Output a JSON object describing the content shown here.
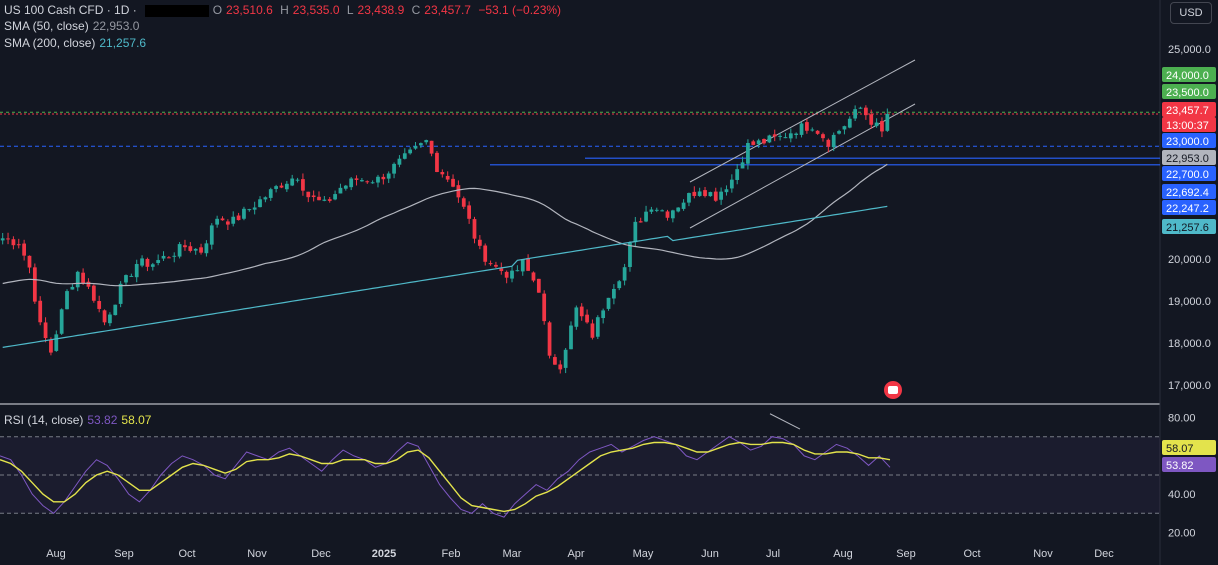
{
  "header": {
    "symbol": "US 100 Cash CFD · 1D ·",
    "open_label": "O",
    "open": "23,510.6",
    "high_label": "H",
    "high": "23,535.0",
    "low_label": "L",
    "low": "23,438.9",
    "close_label": "C",
    "close": "23,457.7",
    "change": "−53.1 (−0.23%)",
    "currency": "USD"
  },
  "indicators": {
    "sma50_label": "SMA (50, close)",
    "sma50_value": "22,953.0",
    "sma200_label": "SMA (200, close)",
    "sma200_value": "21,257.6",
    "rsi_label": "RSI (14, close)",
    "rsi_value": "53.82",
    "rsi_ma_value": "58.07"
  },
  "colors": {
    "bg": "#131722",
    "up": "#26a69a",
    "down": "#f23645",
    "sma50": "#b2b5be",
    "sma200": "#4fb9c9",
    "rsi": "#7e57c2",
    "rsi_ma": "#e3e34c",
    "hline": "#2962ff",
    "green_badge": "#4caf50"
  },
  "chart_data": [
    {
      "type": "candlestick",
      "title": "US 100 Cash CFD · 1D",
      "ylim": [
        16600,
        25600
      ],
      "x_labels": [
        "Aug",
        "Sep",
        "Oct",
        "Nov",
        "Dec",
        "2025",
        "Feb",
        "Mar",
        "Apr",
        "May",
        "Jun",
        "Jul",
        "Aug",
        "Sep",
        "Oct",
        "Nov",
        "Dec"
      ],
      "y_ticks": [
        17000,
        18000,
        19000,
        20000,
        25000
      ],
      "price_path": [
        [
          0,
          20500
        ],
        [
          3,
          20400
        ],
        [
          5,
          19800
        ],
        [
          7,
          18400
        ],
        [
          9,
          17800
        ],
        [
          12,
          19200
        ],
        [
          14,
          19700
        ],
        [
          17,
          19100
        ],
        [
          19,
          18500
        ],
        [
          22,
          19300
        ],
        [
          25,
          19900
        ],
        [
          28,
          19900
        ],
        [
          31,
          20100
        ],
        [
          34,
          20300
        ],
        [
          37,
          20200
        ],
        [
          40,
          21000
        ],
        [
          43,
          20900
        ],
        [
          46,
          21200
        ],
        [
          49,
          21500
        ],
        [
          52,
          21800
        ],
        [
          55,
          22000
        ],
        [
          57,
          21500
        ],
        [
          60,
          21300
        ],
        [
          63,
          21700
        ],
        [
          66,
          21900
        ],
        [
          70,
          21900
        ],
        [
          73,
          22200
        ],
        [
          76,
          22500
        ],
        [
          79,
          22800
        ],
        [
          81,
          22200
        ],
        [
          84,
          21800
        ],
        [
          87,
          20900
        ],
        [
          89,
          20200
        ],
        [
          92,
          19800
        ],
        [
          95,
          19600
        ],
        [
          97,
          19900
        ],
        [
          100,
          19300
        ],
        [
          102,
          17600
        ],
        [
          104,
          17500
        ],
        [
          107,
          18800
        ],
        [
          110,
          18200
        ],
        [
          113,
          19200
        ],
        [
          116,
          19800
        ],
        [
          118,
          20800
        ],
        [
          121,
          21300
        ],
        [
          124,
          21100
        ],
        [
          127,
          21400
        ],
        [
          130,
          21700
        ],
        [
          133,
          21500
        ],
        [
          136,
          21900
        ],
        [
          139,
          22700
        ],
        [
          142,
          22800
        ],
        [
          145,
          22900
        ],
        [
          148,
          23100
        ],
        [
          151,
          23200
        ],
        [
          154,
          22800
        ],
        [
          157,
          23200
        ],
        [
          160,
          23600
        ],
        [
          162,
          23300
        ],
        [
          164,
          23000
        ],
        [
          165,
          23457.7
        ]
      ],
      "levels": [
        23500,
        23000,
        22700,
        22692.4,
        22247.2
      ]
    },
    {
      "type": "line",
      "series": [
        {
          "name": "SMA (50, close)",
          "last_value": 22953.0
        },
        {
          "name": "SMA (200, close)",
          "last_value": 21257.6
        }
      ]
    },
    {
      "type": "line",
      "title": "RSI (14, close)",
      "ylim": [
        15,
        85
      ],
      "y_ticks": [
        20,
        40,
        80
      ],
      "bands": [
        30,
        50,
        70
      ],
      "series": [
        {
          "name": "RSI",
          "last_value": 53.82,
          "values": [
            60,
            58,
            50,
            40,
            34,
            30,
            36,
            44,
            52,
            58,
            55,
            48,
            40,
            36,
            42,
            50,
            56,
            60,
            58,
            55,
            50,
            48,
            55,
            62,
            60,
            58,
            62,
            64,
            60,
            56,
            52,
            58,
            63,
            60,
            58,
            54,
            56,
            62,
            67,
            65,
            55,
            45,
            38,
            32,
            30,
            35,
            30,
            28,
            35,
            40,
            45,
            42,
            48,
            52,
            58,
            62,
            64,
            66,
            62,
            65,
            68,
            70,
            68,
            66,
            60,
            58,
            62,
            66,
            70,
            67,
            63,
            65,
            70,
            69,
            66,
            60,
            58,
            62,
            66,
            64,
            60,
            55,
            60,
            54
          ]
        },
        {
          "name": "RSI-based MA",
          "last_value": 58.07,
          "values": [
            58,
            56,
            52,
            46,
            40,
            36,
            36,
            40,
            46,
            50,
            52,
            50,
            46,
            42,
            42,
            46,
            50,
            54,
            56,
            55,
            53,
            51,
            53,
            57,
            58,
            58,
            59,
            61,
            60,
            58,
            56,
            56,
            58,
            58,
            58,
            56,
            56,
            58,
            62,
            63,
            59,
            52,
            45,
            38,
            34,
            33,
            32,
            31,
            32,
            35,
            39,
            41,
            44,
            48,
            52,
            56,
            60,
            62,
            63,
            64,
            66,
            67,
            67,
            66,
            64,
            62,
            62,
            64,
            66,
            67,
            66,
            66,
            67,
            67,
            66,
            63,
            61,
            61,
            62,
            62,
            61,
            59,
            59,
            58
          ]
        }
      ]
    }
  ],
  "badges": [
    {
      "text": "24,000.0",
      "value": 24000,
      "bg": "#4caf50",
      "fg": "#ffffff"
    },
    {
      "text": "23,500.0",
      "value": 23500,
      "bg": "#4caf50",
      "fg": "#ffffff"
    },
    {
      "text": "23,457.7",
      "value": 23457.7,
      "bg": "#f23645",
      "fg": "#ffffff"
    },
    {
      "text": "13:00:37",
      "value": 23200,
      "bg": "#f23645",
      "fg": "#ffffff"
    },
    {
      "text": "23,000.0",
      "value": 23000,
      "bg": "#2962ff",
      "fg": "#ffffff"
    },
    {
      "text": "22,953.0",
      "value": 22953,
      "bg": "#b2b5be",
      "fg": "#131722"
    },
    {
      "text": "22,700.0",
      "value": 22700,
      "bg": "#2962ff",
      "fg": "#ffffff"
    },
    {
      "text": "22,692.4",
      "value": 22692.4,
      "bg": "#2962ff",
      "fg": "#ffffff"
    },
    {
      "text": "22,247.2",
      "value": 22247.2,
      "bg": "#2962ff",
      "fg": "#ffffff"
    },
    {
      "text": "21,257.6",
      "value": 21257.6,
      "bg": "#4fb9c9",
      "fg": "#131722"
    }
  ],
  "rsi_badges": [
    {
      "text": "58.07",
      "value": 58.07,
      "bg": "#e3e34c",
      "fg": "#131722"
    },
    {
      "text": "53.82",
      "value": 53.82,
      "bg": "#7e57c2",
      "fg": "#ffffff"
    }
  ]
}
